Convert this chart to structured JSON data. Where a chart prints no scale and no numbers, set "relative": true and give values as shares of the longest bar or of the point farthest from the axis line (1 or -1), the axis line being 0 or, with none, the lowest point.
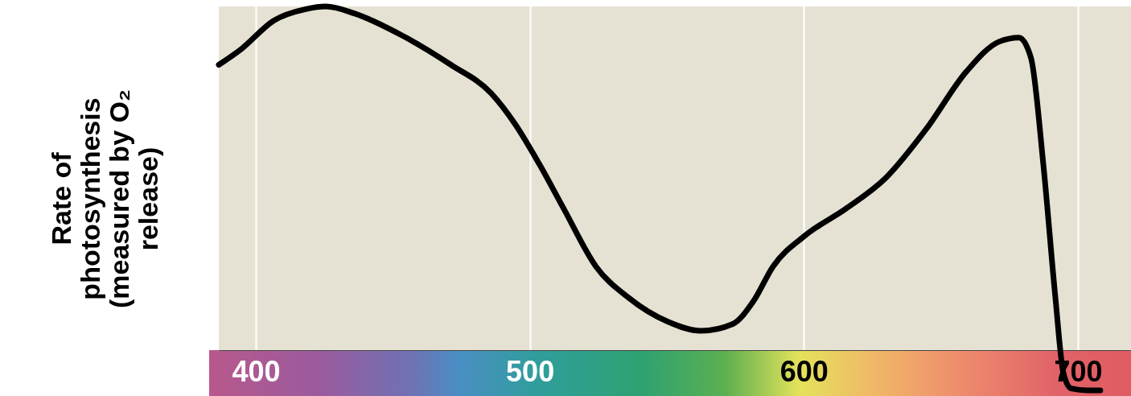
{
  "chart_data": {
    "type": "line",
    "ylabel": "Rate of photosynthesis (measured by O₂ release)",
    "relative": true,
    "xlim": [
      386.5,
      719.4
    ],
    "xticks": [
      400,
      500,
      600,
      700
    ],
    "grid": "x",
    "series": [
      {
        "color": "#000000",
        "x": [
          386.5,
          394.7,
          406.5,
          418.2,
          425.6,
          435.9,
          453.5,
          471.2,
          485.9,
          494.7,
          503.5,
          512.4,
          524.1,
          535.9,
          550.6,
          562.4,
          574.1,
          581.5,
          588.8,
          600.6,
          615.3,
          630,
          644.7,
          659.4,
          671.2,
          678.5,
          682.9,
          687.4,
          691.8,
          694.7,
          697.6,
          703.5,
          708.2
        ],
        "values": [
          0.848,
          0.889,
          0.963,
          0.993,
          1.0,
          0.982,
          0.924,
          0.848,
          0.774,
          0.693,
          0.589,
          0.473,
          0.323,
          0.242,
          0.178,
          0.155,
          0.173,
          0.231,
          0.323,
          0.404,
          0.473,
          0.554,
          0.681,
          0.831,
          0.908,
          0.919,
          0.866,
          0.589,
          0.242,
          0.046,
          0.005,
          0,
          0
        ]
      }
    ]
  }
}
